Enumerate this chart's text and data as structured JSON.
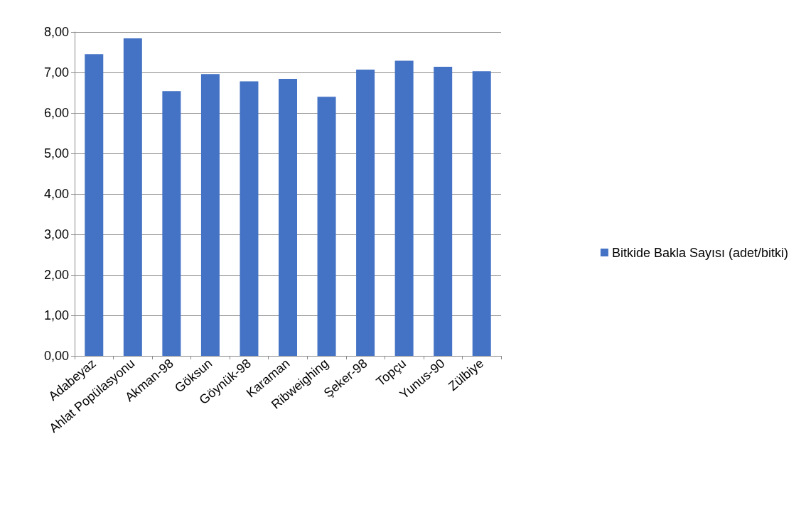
{
  "chart_data": {
    "type": "bar",
    "categories": [
      "Adabeyaz",
      "Ahlat Popülasyonu",
      "Akman-98",
      "Göksun",
      "Göynük-98",
      "Karaman",
      "Ribweighing",
      "Şeker-98",
      "Topçu",
      "Yunus-90",
      "Zülbiye"
    ],
    "series": [
      {
        "name": "Bitkide Bakla Sayısı (adet/bitki)",
        "color": "#4472c4",
        "values": [
          7.45,
          7.84,
          6.54,
          6.96,
          6.78,
          6.84,
          6.4,
          7.07,
          7.29,
          7.14,
          7.03
        ]
      }
    ],
    "ylim": [
      0,
      8
    ],
    "yticks": [
      {
        "value": 0,
        "label": "0,00"
      },
      {
        "value": 1,
        "label": "1,00"
      },
      {
        "value": 2,
        "label": "2,00"
      },
      {
        "value": 3,
        "label": "3,00"
      },
      {
        "value": 4,
        "label": "4,00"
      },
      {
        "value": 5,
        "label": "5,00"
      },
      {
        "value": 6,
        "label": "6,00"
      },
      {
        "value": 7,
        "label": "7,00"
      },
      {
        "value": 8,
        "label": "8,00"
      }
    ],
    "grid": "y",
    "legend": "right"
  }
}
